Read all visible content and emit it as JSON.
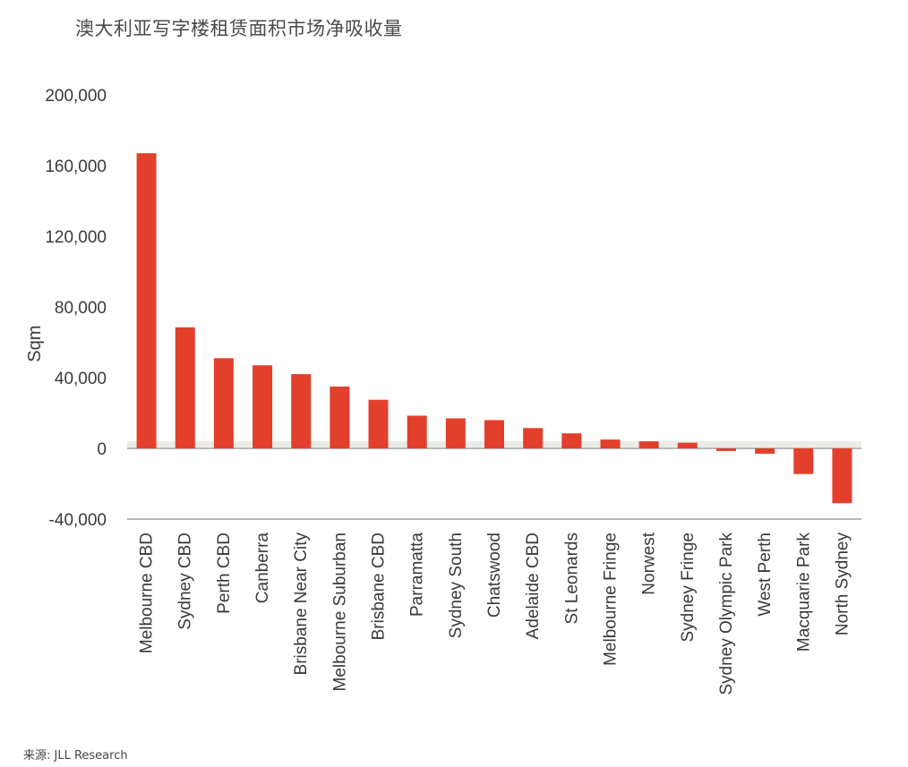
{
  "title": "澳大利亚写字楼租赁面积市场净吸收量",
  "source": "来源: JLL Research",
  "colors": {
    "bar": "#e2402c",
    "axis": "#b9b9b9",
    "zero_band": "#ecece6"
  },
  "chart_data": {
    "type": "bar",
    "ylabel": "Sqm",
    "ylim": [
      -40000,
      200000
    ],
    "yticks": [
      -40000,
      0,
      40000,
      80000,
      120000,
      160000,
      200000
    ],
    "ytick_labels": [
      "-40,000",
      "0",
      "40,000",
      "80,000",
      "120,000",
      "160,000",
      "200,000"
    ],
    "grid": false,
    "categories": [
      "Melbourne CBD",
      "Sydney CBD",
      "Perth CBD",
      "Canberra",
      "Brisbane Near City",
      "Melbourne Suburban",
      "Brisbane CBD",
      "Parramatta",
      "Sydney South",
      "Chatswood",
      "Adelaide CBD",
      "St Leonards",
      "Melbourne Fringe",
      "Norwest",
      "Sydney Fringe",
      "Sydney Olympic Park",
      "West Perth",
      "Macquarie Park",
      "North Sydney"
    ],
    "values": [
      167000,
      68500,
      51000,
      47000,
      42000,
      35000,
      27500,
      18500,
      17000,
      16000,
      11500,
      8500,
      5000,
      4000,
      3200,
      -1500,
      -3000,
      -14500,
      -31000
    ]
  }
}
